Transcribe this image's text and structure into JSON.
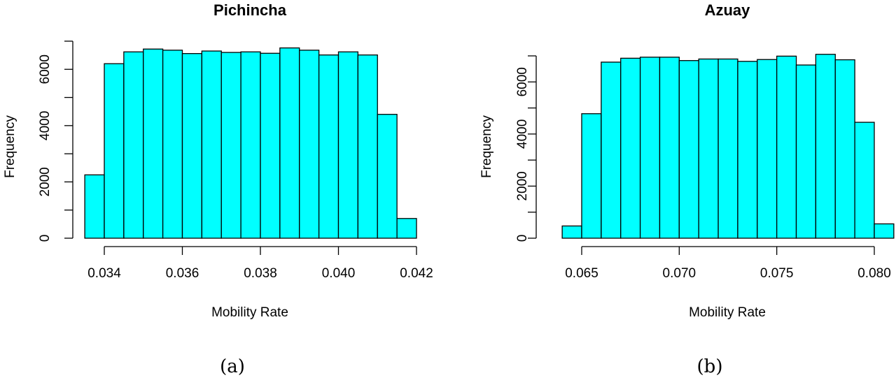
{
  "chart_data": [
    {
      "type": "bar",
      "title": "Pichincha",
      "xlabel": "Mobility Rate",
      "ylabel": "Frequency",
      "caption": "(a)",
      "bar_color": "#00FFFF",
      "border_color": "#000000",
      "bin_edges": [
        0.0335,
        0.034,
        0.0345,
        0.035,
        0.0355,
        0.036,
        0.0365,
        0.037,
        0.0375,
        0.038,
        0.0385,
        0.039,
        0.0395,
        0.04,
        0.0405,
        0.041,
        0.0415,
        0.042
      ],
      "values": [
        2250,
        6200,
        6620,
        6720,
        6680,
        6560,
        6650,
        6600,
        6620,
        6570,
        6760,
        6680,
        6510,
        6620,
        6510,
        4400,
        700
      ],
      "xlim": [
        0.034,
        0.042
      ],
      "ylim": [
        0,
        6800
      ],
      "x_ticks": [
        0.034,
        0.036,
        0.038,
        0.04,
        0.042
      ],
      "x_tick_labels": [
        "0.034",
        "0.036",
        "0.038",
        "0.040",
        "0.042"
      ],
      "y_ticks": [
        0,
        1000,
        2000,
        3000,
        4000,
        5000,
        6000,
        7000
      ],
      "y_tick_labels": [
        "0",
        "",
        "2000",
        "",
        "4000",
        "",
        "6000",
        ""
      ]
    },
    {
      "type": "bar",
      "title": "Azuay",
      "xlabel": "Mobility Rate",
      "ylabel": "Frequency",
      "caption": "(b)",
      "bar_color": "#00FFFF",
      "border_color": "#000000",
      "bin_edges": [
        0.064,
        0.065,
        0.066,
        0.067,
        0.068,
        0.069,
        0.07,
        0.071,
        0.072,
        0.073,
        0.074,
        0.075,
        0.076,
        0.077,
        0.078,
        0.079,
        0.08,
        0.081
      ],
      "values": [
        470,
        4780,
        6760,
        6910,
        6950,
        6950,
        6820,
        6880,
        6880,
        6790,
        6860,
        6990,
        6650,
        7060,
        6850,
        4450,
        550
      ],
      "xlim": [
        0.065,
        0.08
      ],
      "ylim": [
        0,
        7000
      ],
      "x_ticks": [
        0.065,
        0.07,
        0.075,
        0.08
      ],
      "x_tick_labels": [
        "0.065",
        "0.070",
        "0.075",
        "0.080"
      ],
      "y_ticks": [
        0,
        1000,
        2000,
        3000,
        4000,
        5000,
        6000,
        7000
      ],
      "y_tick_labels": [
        "0",
        "",
        "2000",
        "",
        "4000",
        "",
        "6000",
        ""
      ]
    }
  ]
}
